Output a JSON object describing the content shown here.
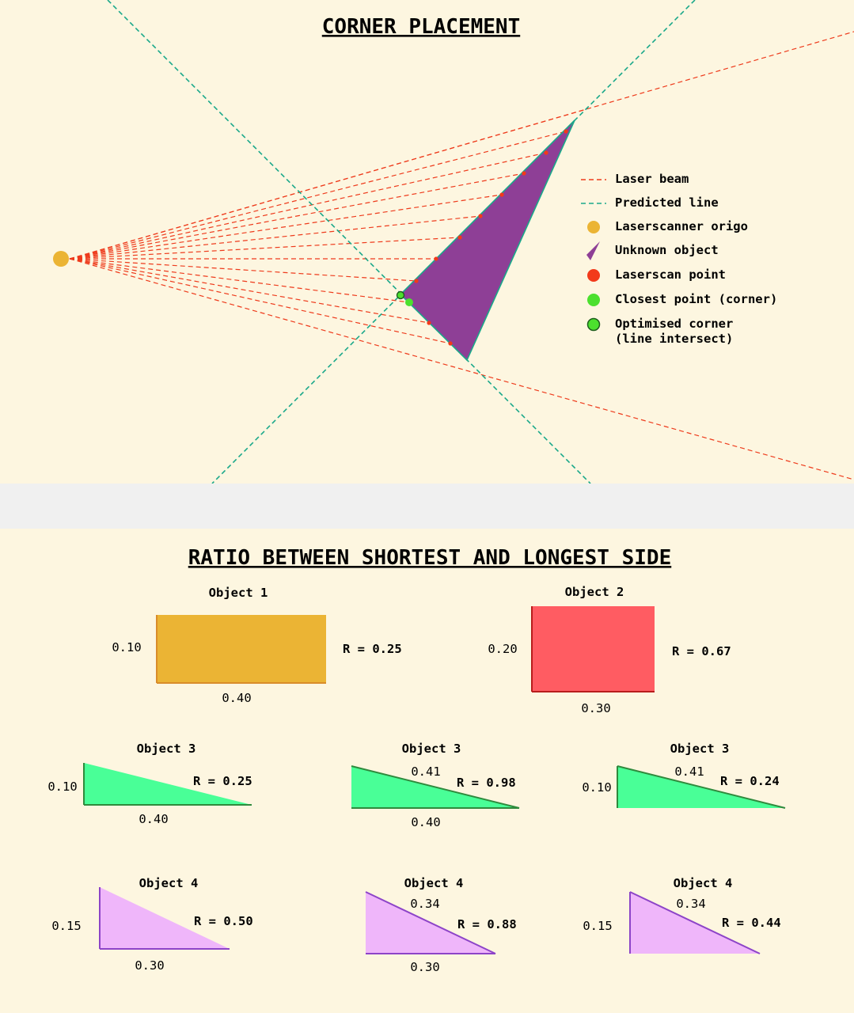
{
  "corner_placement": {
    "title": "CORNER PLACEMENT",
    "legend": {
      "laser_beam": "Laser beam",
      "predicted_line": "Predicted line",
      "origo": "Laserscanner origo",
      "unknown_object": "Unknown object",
      "scan_point": "Laserscan point",
      "closest_point": "Closest point (corner)",
      "optimised_corner_line1": "Optimised corner",
      "optimised_corner_line2": "(line intersect)"
    },
    "colors": {
      "background": "#fdf6e0",
      "laser_beam": "#ee3b1c",
      "predicted_line": "#1aa88a",
      "origo": "#ebb434",
      "object": "#8e3f96",
      "scan_point": "#f23a1a",
      "closest_point": "#4ce02e"
    }
  },
  "ratio_section": {
    "title": "RATIO BETWEEN SHORTEST AND LONGEST SIDE",
    "objects": [
      {
        "title": "Object 1",
        "short": "0.10",
        "long": "0.40",
        "ratio": "R = 0.25"
      },
      {
        "title": "Object 2",
        "short": "0.20",
        "long": "0.30",
        "ratio": "R = 0.67"
      },
      {
        "title": "Object 3",
        "short": "0.10",
        "long": "0.40",
        "ratio": "R = 0.25"
      },
      {
        "title": "Object 3",
        "hyp": "0.41",
        "long": "0.40",
        "ratio": "R = 0.98"
      },
      {
        "title": "Object 3",
        "short": "0.10",
        "hyp": "0.41",
        "ratio": "R = 0.24"
      },
      {
        "title": "Object 4",
        "short": "0.15",
        "long": "0.30",
        "ratio": "R = 0.50"
      },
      {
        "title": "Object 4",
        "hyp": "0.34",
        "long": "0.30",
        "ratio": "R = 0.88"
      },
      {
        "title": "Object 4",
        "short": "0.15",
        "hyp": "0.34",
        "ratio": "R = 0.44"
      }
    ],
    "colors": {
      "object1_fill": "#ebb434",
      "object1_edge": "#d98c2a",
      "object2_fill": "#ff5c62",
      "object2_edge": "#b81c1c",
      "object3_fill": "#49ff97",
      "object3_edge": "#2f8a3d",
      "object4_fill": "#efb6fa",
      "object4_edge": "#8d44c8"
    }
  }
}
